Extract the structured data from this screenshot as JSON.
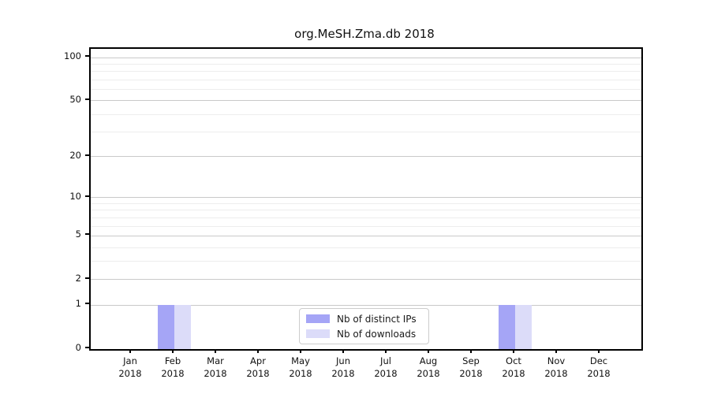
{
  "chart_data": {
    "type": "bar",
    "title": "org.MeSH.Zma.db 2018",
    "categories": [
      "Jan 2018",
      "Feb 2018",
      "Mar 2018",
      "Apr 2018",
      "May 2018",
      "Jun 2018",
      "Jul 2018",
      "Aug 2018",
      "Sep 2018",
      "Oct 2018",
      "Nov 2018",
      "Dec 2018"
    ],
    "series": [
      {
        "name": "Nb of distinct IPs",
        "color": "#a5a5f6",
        "values": [
          0,
          1,
          0,
          0,
          0,
          0,
          0,
          0,
          0,
          1,
          0,
          0
        ]
      },
      {
        "name": "Nb of downloads",
        "color": "#dcdcf9",
        "values": [
          0,
          1,
          0,
          0,
          0,
          0,
          0,
          0,
          0,
          1,
          0,
          0
        ]
      }
    ],
    "xlabel": "",
    "ylabel": "",
    "yscale": "log1p",
    "ylim": [
      0,
      115
    ],
    "yticks_major": [
      0,
      1,
      2,
      5,
      10,
      20,
      50,
      100
    ],
    "yticks_minor": [
      3,
      4,
      6,
      7,
      8,
      9,
      30,
      40,
      60,
      70,
      80,
      90
    ],
    "grid": "horizontal",
    "legend_position": "bottom-center"
  },
  "colors": {
    "background": "#ffffff",
    "axis": "#000000",
    "grid_major": "#c9c9c9",
    "grid_minor": "#ededed",
    "legend_border": "#cccccc"
  }
}
